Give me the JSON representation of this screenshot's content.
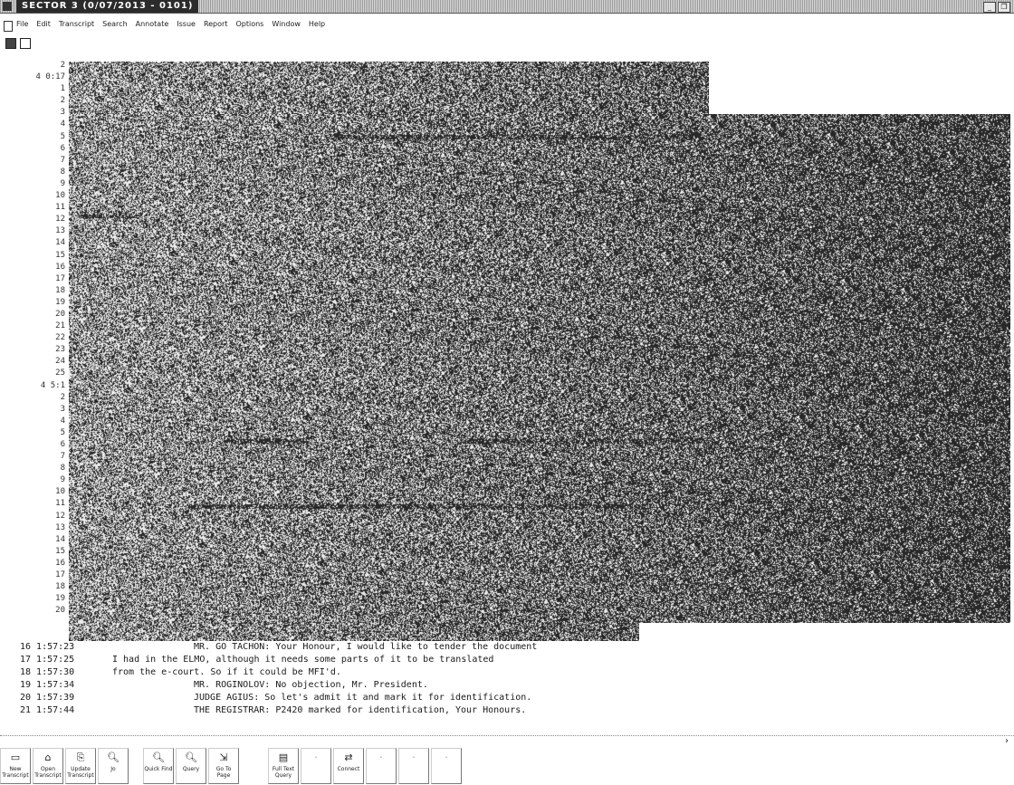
{
  "window": {
    "title": "SECTOR 3 (0/07/2013 - 0101)"
  },
  "menu": [
    "File",
    "Edit",
    "Transcript",
    "Search",
    "Annotate",
    "Issue",
    "Report",
    "Options",
    "Window",
    "Help"
  ],
  "line_numbers": [
    "2",
    "4 0:17",
    "1",
    "2",
    "3",
    "4",
    "5",
    "6",
    "7",
    "8",
    "9",
    "10",
    "11",
    "12",
    "13",
    "14",
    "15",
    "16",
    "17",
    "18",
    "19",
    "20",
    "21",
    "22",
    "23",
    "24",
    "25",
    "4 5:1",
    "2",
    "3",
    "4",
    "5",
    "6",
    "7",
    "8",
    "9",
    "10",
    "11",
    "12",
    "13",
    "14",
    "15",
    "16",
    "17",
    "18",
    "19",
    "20"
  ],
  "transcript": [
    {
      "ts": "16 1:57:23",
      "speaker": "MR. GO TACHON:",
      "text": " Your Honour, I would like to tender the document"
    },
    {
      "ts": "17 1:57:25",
      "speaker": "",
      "text": "I had in the ELMO, although it needs some parts of it to be translated"
    },
    {
      "ts": "18 1:57:30",
      "speaker": "",
      "text": "from the e-court. So if it could be MFI'd."
    },
    {
      "ts": "19 1:57:34",
      "speaker": "MR. ROGINOLOV:",
      "text": " No objection, Mr. President."
    },
    {
      "ts": "20 1:57:39",
      "speaker": "JUDGE AGIUS:",
      "text": " So let's admit it and mark it for identification."
    },
    {
      "ts": "21 1:57:44",
      "speaker": "THE REGISTRAR:",
      "text": " P2420 marked for identification, Your Honours."
    }
  ],
  "toolbar": [
    {
      "name": "new-transcript",
      "label": "New Transcript"
    },
    {
      "name": "open-transcript",
      "label": "Open Transcript"
    },
    {
      "name": "update-transcript",
      "label": "Update Transcript"
    },
    {
      "name": "jo",
      "label": "Jo"
    },
    {
      "name": "quick-find",
      "label": "Quick Find"
    },
    {
      "name": "query",
      "label": "Query"
    },
    {
      "name": "go-to-page",
      "label": "Go To Page"
    },
    {
      "name": "full-text-query",
      "label": "Full Text Query"
    },
    {
      "name": "blank-1",
      "label": ""
    },
    {
      "name": "connect",
      "label": "Connect"
    },
    {
      "name": "blank-2",
      "label": ""
    },
    {
      "name": "blank-3",
      "label": ""
    },
    {
      "name": "blank-4",
      "label": ""
    }
  ],
  "colors": {
    "noise_light": "#dcdcdc",
    "noise_dark": "#4a4a4a"
  }
}
